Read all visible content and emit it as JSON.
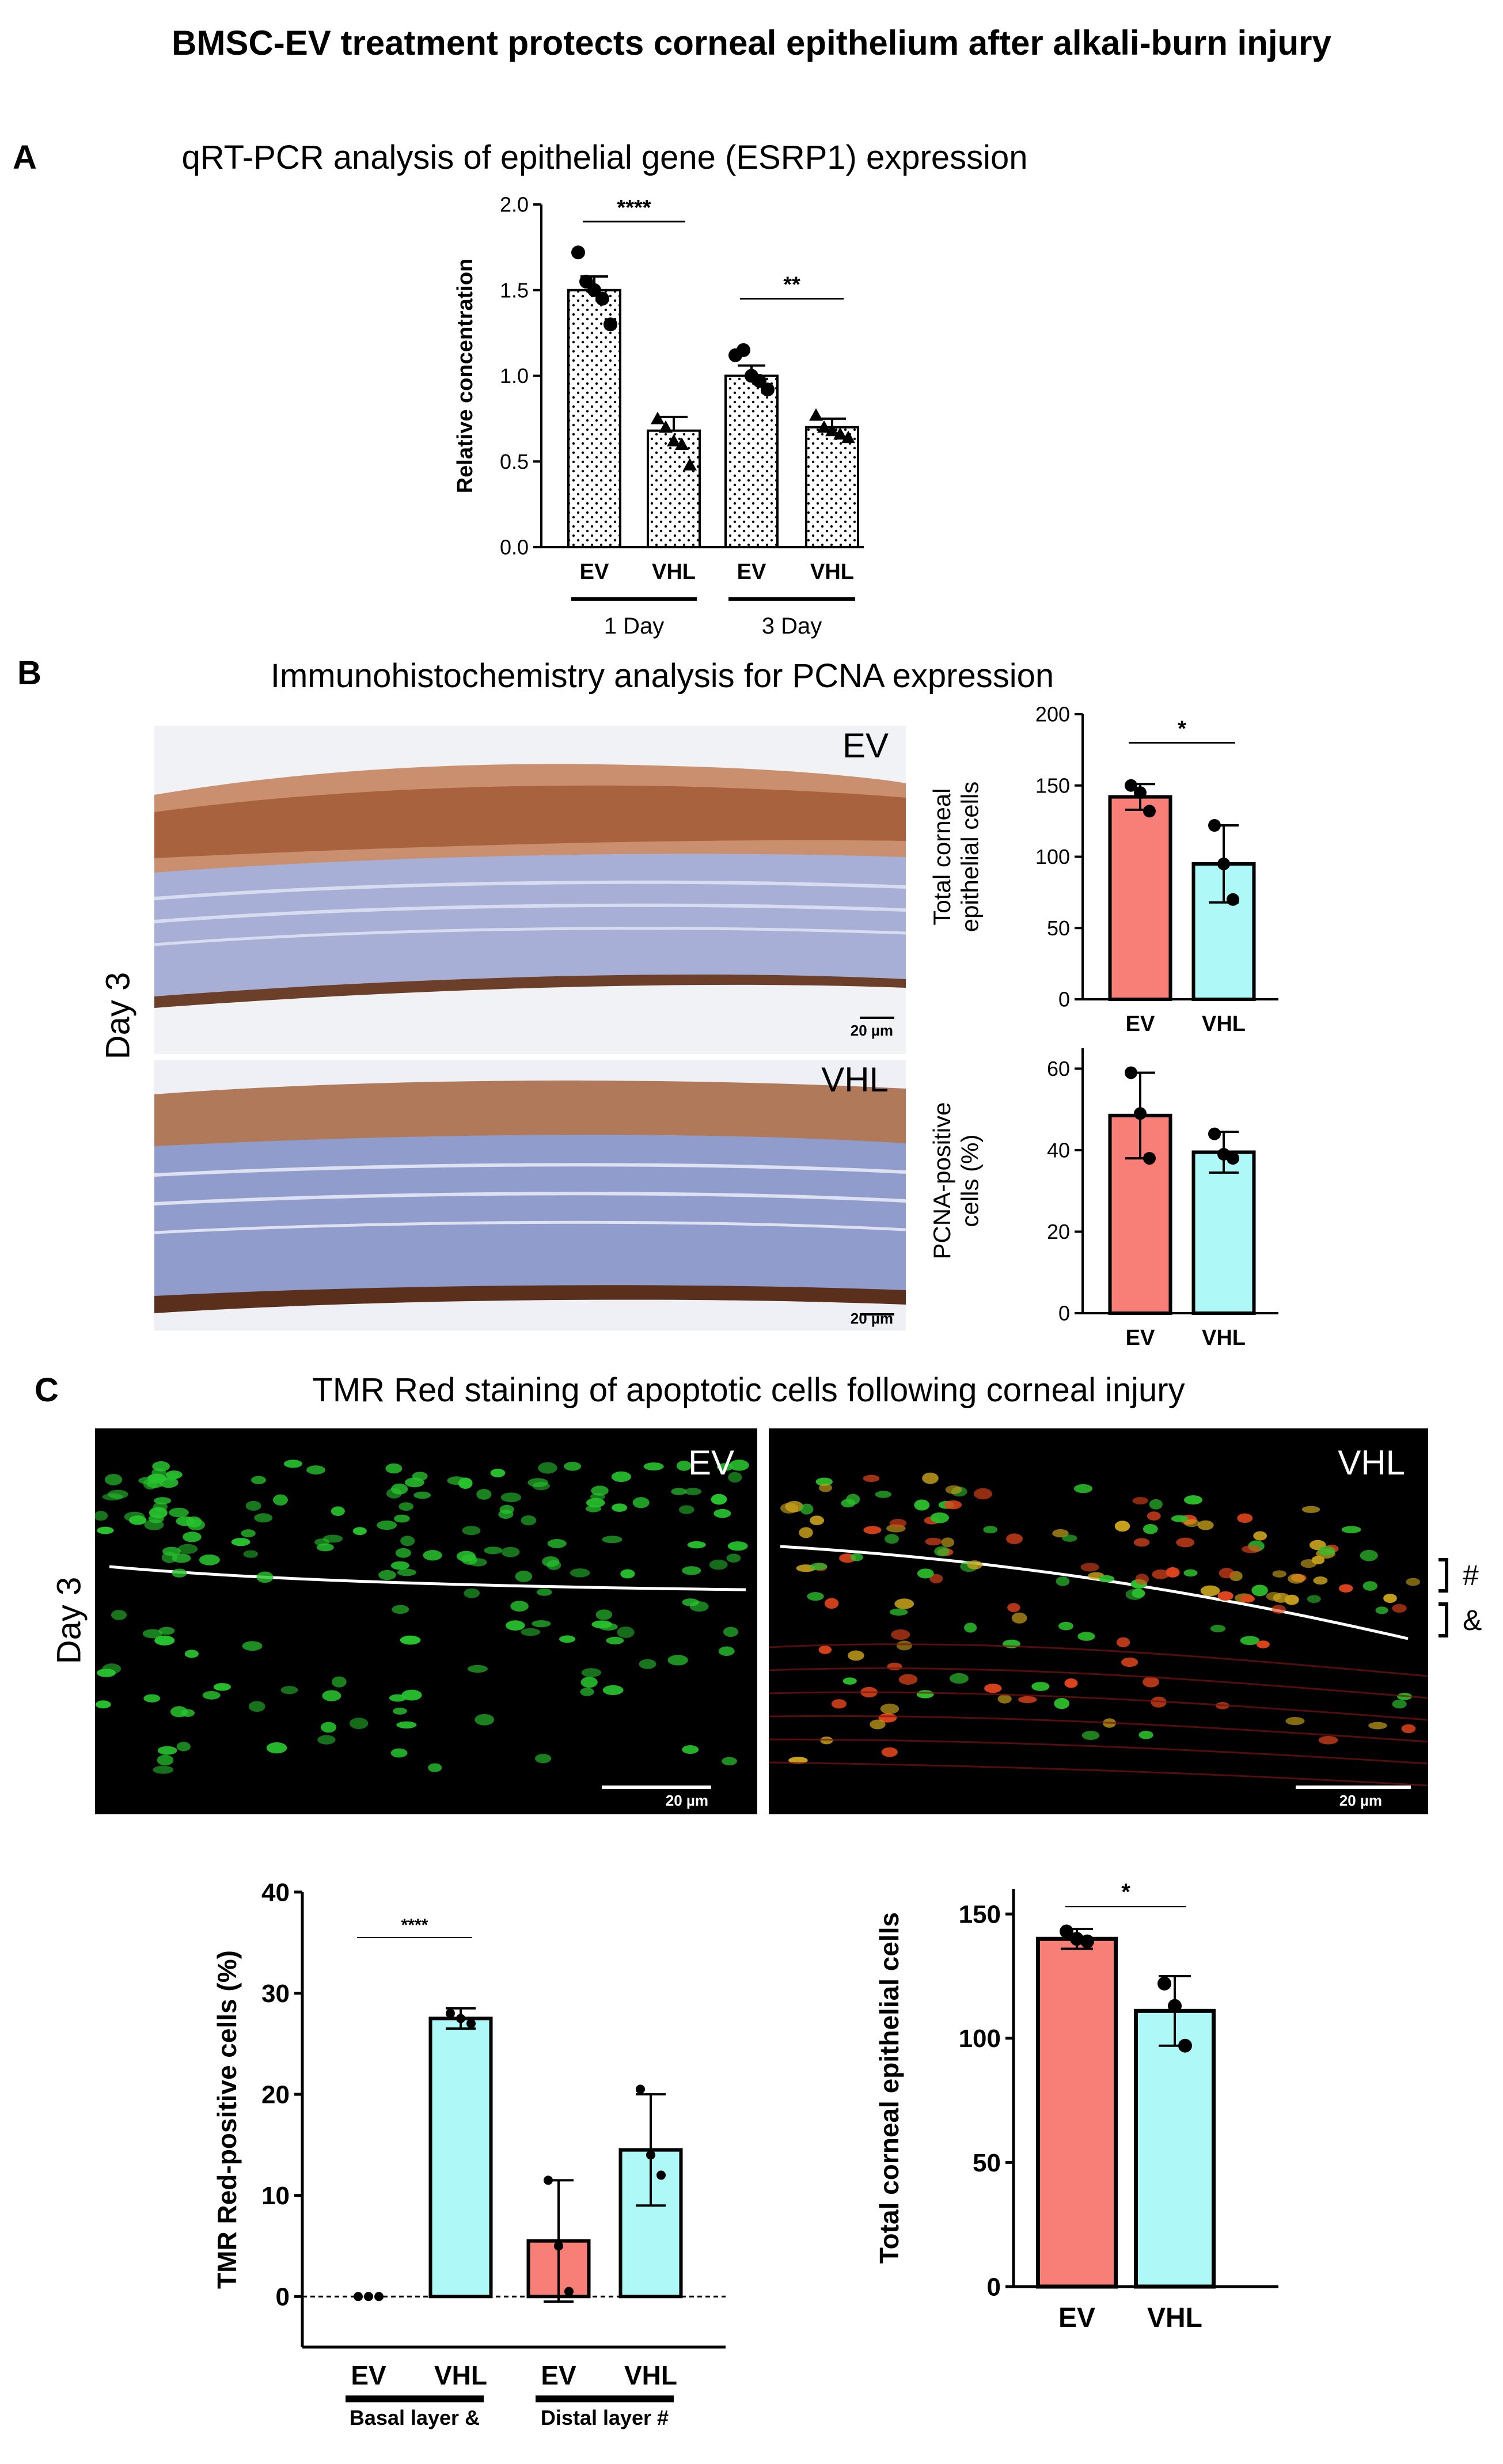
{
  "title": "BMSC-EV treatment protects corneal epithelium after alkali-burn injury",
  "panel_a": {
    "letter": "A",
    "title": "qRT-PCR analysis of epithelial gene (ESRP1) expression"
  },
  "panel_b": {
    "letter": "B",
    "title": "Immunohistochemistry analysis for PCNA expression",
    "day_label": "Day 3",
    "image_labels": [
      "EV",
      "VHL"
    ],
    "scalebar": "20 µm"
  },
  "panel_c": {
    "letter": "C",
    "title": "TMR Red staining of apoptotic cells following corneal injury",
    "day_label": "Day 3",
    "image_labels": [
      "EV",
      "VHL"
    ],
    "scalebar": "20 µm",
    "layer_marks": [
      "#",
      "&"
    ]
  },
  "chart_data": [
    {
      "id": "esrp1",
      "type": "bar",
      "categories": [
        "EV",
        "VHL",
        "EV",
        "VHL"
      ],
      "groups": [
        "1 Day",
        "3 Day"
      ],
      "values": [
        1.5,
        0.68,
        1.0,
        0.7
      ],
      "errors": [
        0.08,
        0.08,
        0.06,
        0.05
      ],
      "points": [
        [
          1.72,
          1.55,
          1.5,
          1.45,
          1.3
        ],
        [
          0.75,
          0.7,
          0.62,
          0.6,
          0.48
        ],
        [
          1.12,
          1.15,
          1.0,
          0.97,
          0.92
        ],
        [
          0.77,
          0.7,
          0.68,
          0.66,
          0.64
        ]
      ],
      "ylabel": "Relative concentration",
      "ylim": [
        0,
        2.0
      ],
      "yticks": [
        "0.0",
        "0.5",
        "1.0",
        "1.5",
        "2.0"
      ],
      "significance": [
        "****",
        "**"
      ]
    },
    {
      "id": "total-cells-b",
      "type": "bar",
      "categories": [
        "EV",
        "VHL"
      ],
      "values": [
        142,
        95
      ],
      "errors": [
        9,
        27
      ],
      "points": [
        [
          150,
          145,
          132
        ],
        [
          122,
          95,
          70
        ]
      ],
      "ylabel": "Total corneal epithelial cells",
      "ylim": [
        0,
        200
      ],
      "yticks": [
        "0",
        "50",
        "100",
        "150",
        "200"
      ],
      "colors": [
        "#f87f77",
        "#aef8f8"
      ],
      "significance": [
        "*"
      ]
    },
    {
      "id": "pcna",
      "type": "bar",
      "categories": [
        "EV",
        "VHL"
      ],
      "values": [
        48.5,
        39.5
      ],
      "errors": [
        10.5,
        5
      ],
      "points": [
        [
          59,
          49,
          38
        ],
        [
          44,
          39,
          38
        ]
      ],
      "ylabel": "PCNA-positive cells (%)",
      "ylim": [
        0,
        65
      ],
      "yticks": [
        "0",
        "20",
        "40",
        "60"
      ],
      "colors": [
        "#f87f77",
        "#aef8f8"
      ]
    },
    {
      "id": "tmr",
      "type": "bar",
      "categories": [
        "EV",
        "VHL",
        "EV",
        "VHL"
      ],
      "groups": [
        "Basal layer &",
        "Distal layer #"
      ],
      "values": [
        0,
        27.5,
        5.5,
        14.5
      ],
      "errors": [
        0,
        1,
        6,
        5.5
      ],
      "points": [
        [
          0,
          0,
          0
        ],
        [
          28,
          27.5,
          27
        ],
        [
          11.5,
          5,
          0.5
        ],
        [
          20.5,
          14,
          12
        ]
      ],
      "ylabel": "TMR Red-positive cells (%)",
      "ylim": [
        -5,
        40
      ],
      "yticks": [
        "0",
        "10",
        "20",
        "30",
        "40"
      ],
      "colors": [
        "#f87f77",
        "#aef8f8",
        "#f87f77",
        "#aef8f8"
      ],
      "significance": [
        "****"
      ]
    },
    {
      "id": "total-cells-c",
      "type": "bar",
      "categories": [
        "EV",
        "VHL"
      ],
      "values": [
        140,
        111
      ],
      "errors": [
        4,
        14
      ],
      "points": [
        [
          143,
          140,
          139
        ],
        [
          122,
          113,
          97
        ]
      ],
      "ylabel": "Total corneal epithelial cells",
      "ylim": [
        0,
        160
      ],
      "yticks": [
        "0",
        "50",
        "100",
        "150"
      ],
      "colors": [
        "#f87f77",
        "#aef8f8"
      ],
      "significance": [
        "*"
      ]
    }
  ]
}
